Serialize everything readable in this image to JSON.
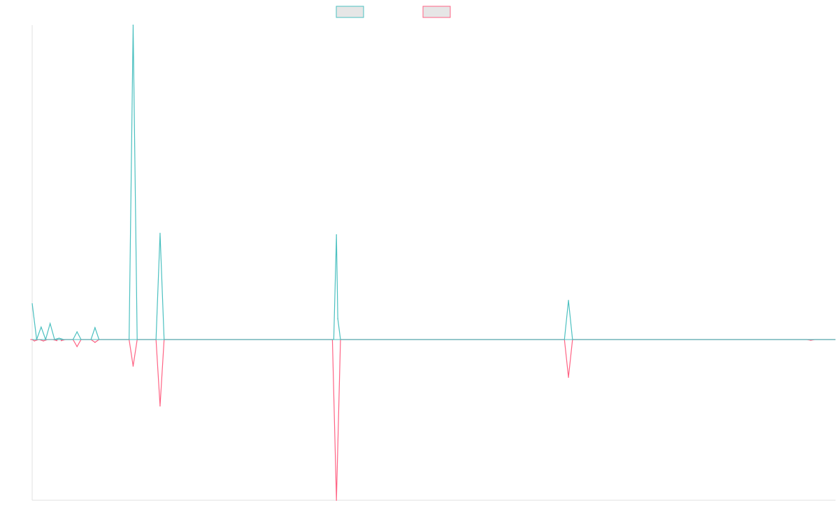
{
  "colors": {
    "series_a": "#4bc0c0",
    "series_a_fill": "rgba(75, 192, 192, 0.2)",
    "series_b": "#ff6384",
    "series_b_fill": "rgba(255, 99, 132, 0.2)",
    "legend_box_fill": "#e6e6e6",
    "axis": "#e0e0e0"
  },
  "legend": {
    "placement": "top-center",
    "items": [
      {
        "color_key": "series_a",
        "label": ""
      },
      {
        "color_key": "series_b",
        "label": ""
      }
    ]
  },
  "chart_data": {
    "type": "line",
    "title": "",
    "xlabel": "",
    "ylabel": "",
    "grid": false,
    "legend_placement": "top-center",
    "x_tick_labels_shown": false,
    "y_tick_labels_shown": false,
    "ylim": [
      -230,
      450
    ],
    "x": [
      0,
      1,
      2,
      3,
      4,
      5,
      6,
      7,
      8,
      9,
      10,
      11,
      12,
      13,
      14,
      15,
      16,
      17,
      18,
      19,
      20,
      21,
      22,
      23,
      24,
      25,
      26,
      27,
      28,
      29,
      30,
      31,
      32,
      33,
      34,
      35,
      36,
      37,
      38,
      39,
      40,
      41,
      42,
      43,
      44,
      45,
      46,
      47,
      48,
      49,
      50,
      51,
      52,
      53,
      54,
      55,
      56,
      57,
      58,
      59,
      60,
      61,
      62,
      63,
      64,
      65,
      66,
      67,
      68,
      69,
      70,
      71,
      72,
      73,
      74,
      75,
      76,
      77,
      78,
      79,
      80,
      81,
      82,
      83,
      84,
      85,
      86,
      87,
      88,
      89,
      90,
      91,
      92,
      93,
      94,
      95,
      96,
      97,
      98,
      99,
      100,
      101,
      102,
      103,
      104,
      105,
      106,
      107,
      108,
      109,
      110,
      111,
      112,
      113,
      114,
      115,
      116,
      117,
      118,
      119,
      120,
      121,
      122,
      123,
      124,
      125,
      126,
      127,
      128,
      129,
      130,
      131,
      132,
      133,
      134,
      135,
      136,
      137,
      138,
      139,
      140,
      141,
      142,
      143,
      144,
      145,
      146,
      147,
      148,
      149,
      150,
      151,
      152,
      153,
      154,
      155,
      156,
      157,
      158,
      159,
      160,
      161,
      162,
      163,
      164,
      165,
      166,
      167,
      168,
      169,
      170,
      171,
      172,
      173,
      174,
      175,
      176,
      177,
      178,
      179
    ],
    "series": [
      {
        "color_key": "series_a",
        "values": [
          52,
          0,
          18,
          0,
          23,
          0,
          2,
          0,
          0,
          0,
          0,
          0,
          0,
          0,
          0,
          0,
          0,
          0,
          0,
          0,
          0,
          0,
          0,
          0,
          0,
          0,
          0,
          0,
          0,
          0,
          0,
          0,
          0,
          0,
          0,
          0,
          0,
          0,
          0,
          0,
          0,
          0,
          0,
          0,
          0,
          0,
          0,
          0,
          0,
          0,
          0,
          0,
          0,
          0,
          0,
          0,
          0,
          0,
          0,
          0,
          0,
          0,
          0,
          0,
          0,
          0,
          0,
          0,
          0,
          0,
          0,
          0,
          0,
          0,
          0,
          0,
          0,
          0,
          0,
          0,
          0,
          0,
          0,
          0,
          0,
          0,
          0,
          0,
          0,
          0,
          0,
          0,
          0,
          0,
          0,
          0,
          0,
          0,
          0,
          0,
          0,
          0,
          0,
          0,
          0,
          0,
          0,
          0,
          0,
          0,
          0,
          0,
          0,
          0,
          0,
          0,
          0,
          0,
          0,
          0,
          0,
          0,
          0,
          0,
          0,
          0,
          0,
          0,
          0,
          0,
          0,
          0,
          0,
          0,
          0,
          0,
          0,
          0,
          0,
          0,
          0,
          0,
          0,
          0,
          0,
          0,
          0,
          0,
          0,
          0,
          0,
          0,
          0,
          0,
          0,
          0,
          0,
          0,
          0,
          0,
          0,
          0,
          0,
          0,
          0,
          0,
          0,
          0,
          0,
          0,
          0,
          0,
          0,
          0,
          0,
          0,
          0,
          0,
          0,
          0
        ],
        "spikes": [
          {
            "x": 10,
            "value": 11
          },
          {
            "x": 14,
            "value": 17
          },
          {
            "x": 22.5,
            "value": 450
          },
          {
            "x": 28.5,
            "value": 152
          },
          {
            "x": 67.8,
            "value": 150
          },
          {
            "x": 68.1,
            "value": 30
          },
          {
            "x": 119.5,
            "value": 56
          }
        ]
      },
      {
        "color_key": "series_b",
        "spikes": [
          {
            "x": 0.5,
            "value": -2
          },
          {
            "x": 2.5,
            "value": -2
          },
          {
            "x": 5.5,
            "value": -1.5
          },
          {
            "x": 6.5,
            "value": -1.5
          },
          {
            "x": 10,
            "value": -10
          },
          {
            "x": 14,
            "value": -4
          },
          {
            "x": 22.5,
            "value": -38
          },
          {
            "x": 28.5,
            "value": -95
          },
          {
            "x": 67.8,
            "value": -230
          },
          {
            "x": 119.5,
            "value": -54
          },
          {
            "x": 173.5,
            "value": -1
          }
        ]
      }
    ]
  }
}
